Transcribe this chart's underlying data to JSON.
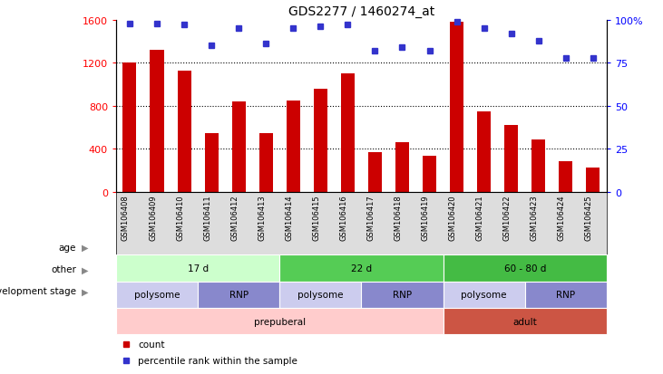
{
  "title": "GDS2277 / 1460274_at",
  "samples": [
    "GSM106408",
    "GSM106409",
    "GSM106410",
    "GSM106411",
    "GSM106412",
    "GSM106413",
    "GSM106414",
    "GSM106415",
    "GSM106416",
    "GSM106417",
    "GSM106418",
    "GSM106419",
    "GSM106420",
    "GSM106421",
    "GSM106422",
    "GSM106423",
    "GSM106424",
    "GSM106425"
  ],
  "counts": [
    1200,
    1320,
    1130,
    550,
    840,
    550,
    850,
    960,
    1100,
    370,
    460,
    340,
    1580,
    745,
    620,
    490,
    290,
    230
  ],
  "percentile": [
    98,
    98,
    97,
    85,
    95,
    86,
    95,
    96,
    97,
    82,
    84,
    82,
    99,
    95,
    92,
    88,
    78,
    78
  ],
  "ylim_left": [
    0,
    1600
  ],
  "ylim_right": [
    0,
    100
  ],
  "yticks_left": [
    0,
    400,
    800,
    1200,
    1600
  ],
  "yticks_right": [
    0,
    25,
    50,
    75,
    100
  ],
  "bar_color": "#cc0000",
  "dot_color": "#3333cc",
  "age_groups": [
    {
      "label": "17 d",
      "start": 0,
      "end": 6,
      "color": "#ccffcc"
    },
    {
      "label": "22 d",
      "start": 6,
      "end": 12,
      "color": "#55cc55"
    },
    {
      "label": "60 - 80 d",
      "start": 12,
      "end": 18,
      "color": "#44bb44"
    }
  ],
  "other_groups": [
    {
      "label": "polysome",
      "start": 0,
      "end": 3,
      "color": "#ccccee"
    },
    {
      "label": "RNP",
      "start": 3,
      "end": 6,
      "color": "#8888cc"
    },
    {
      "label": "polysome",
      "start": 6,
      "end": 9,
      "color": "#ccccee"
    },
    {
      "label": "RNP",
      "start": 9,
      "end": 12,
      "color": "#8888cc"
    },
    {
      "label": "polysome",
      "start": 12,
      "end": 15,
      "color": "#ccccee"
    },
    {
      "label": "RNP",
      "start": 15,
      "end": 18,
      "color": "#8888cc"
    }
  ],
  "dev_groups": [
    {
      "label": "prepuberal",
      "start": 0,
      "end": 12,
      "color": "#ffcccc"
    },
    {
      "label": "adult",
      "start": 12,
      "end": 18,
      "color": "#cc5544"
    }
  ],
  "legend_items": [
    {
      "color": "#cc0000",
      "marker": "s",
      "label": "count"
    },
    {
      "color": "#3333cc",
      "marker": "s",
      "label": "percentile rank within the sample"
    }
  ],
  "hgrid_values": [
    400,
    800,
    1200
  ],
  "bar_width": 0.5,
  "figsize": [
    7.31,
    4.14
  ],
  "dpi": 100
}
